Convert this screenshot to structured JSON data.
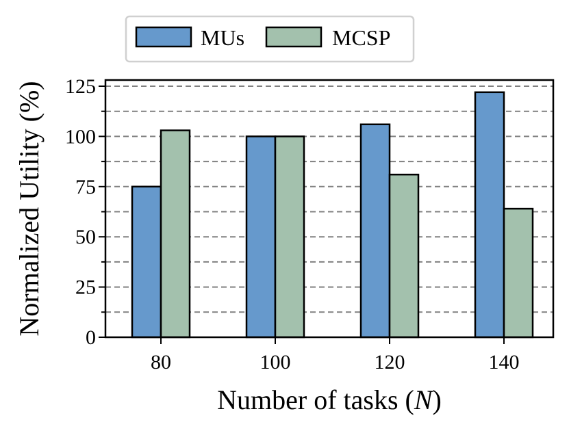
{
  "chart_data": {
    "type": "bar",
    "categories": [
      "80",
      "100",
      "120",
      "140"
    ],
    "series": [
      {
        "name": "MUs",
        "color": "#6699cc",
        "values": [
          75,
          100,
          106,
          122
        ]
      },
      {
        "name": "MCSP",
        "color": "#a3c1ad",
        "values": [
          103,
          100,
          81,
          64
        ]
      }
    ],
    "ylim": [
      0,
      128
    ],
    "yticks": [
      0,
      25,
      50,
      75,
      100,
      125
    ],
    "yticks_minor": [
      12.5,
      37.5,
      62.5,
      87.5,
      112.5
    ],
    "grid": "horizontal dashed (major and minor)",
    "legend_position": "top, above plot",
    "xlabel": {
      "pre": "Number of tasks (",
      "var": "N",
      "post": ")"
    },
    "ylabel": "Normalized Utility (%)"
  }
}
